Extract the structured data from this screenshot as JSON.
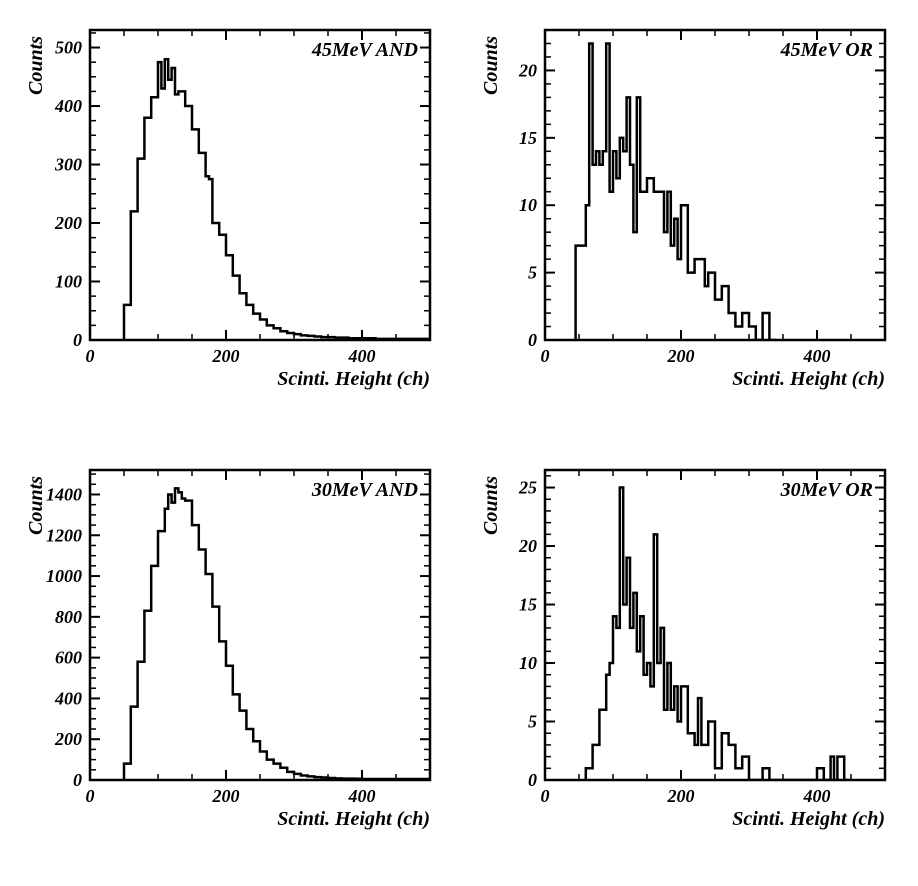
{
  "global": {
    "background_color": "#ffffff",
    "line_color": "#000000",
    "text_color": "#000000",
    "font_family": "Times New Roman",
    "font_style": "italic",
    "font_weight": "bold",
    "tick_fontsize": 18,
    "axis_label_fontsize": 20,
    "title_fontsize": 20,
    "line_width_histogram": 2.5,
    "line_width_frame": 2.5,
    "tick_length": 10,
    "minor_tick_length": 6,
    "xlabel": "Scinti. Height (ch)",
    "ylabel": "Counts"
  },
  "panels": [
    {
      "id": "p45and",
      "title": "45MeV AND",
      "type": "histogram",
      "xlim": [
        0,
        500
      ],
      "xtick_step": 200,
      "xminor_step": 50,
      "ylim": [
        0,
        530
      ],
      "ytick_step": 100,
      "yminor_step": 25,
      "bin_width": 10,
      "data": [
        [
          50,
          60
        ],
        [
          60,
          220
        ],
        [
          70,
          310
        ],
        [
          80,
          380
        ],
        [
          90,
          415
        ],
        [
          100,
          475
        ],
        [
          105,
          430
        ],
        [
          110,
          480
        ],
        [
          115,
          445
        ],
        [
          120,
          465
        ],
        [
          125,
          420
        ],
        [
          130,
          425
        ],
        [
          140,
          400
        ],
        [
          150,
          360
        ],
        [
          160,
          320
        ],
        [
          170,
          280
        ],
        [
          175,
          275
        ],
        [
          180,
          200
        ],
        [
          190,
          180
        ],
        [
          200,
          145
        ],
        [
          210,
          110
        ],
        [
          220,
          80
        ],
        [
          230,
          60
        ],
        [
          240,
          45
        ],
        [
          250,
          35
        ],
        [
          260,
          25
        ],
        [
          270,
          20
        ],
        [
          280,
          15
        ],
        [
          290,
          12
        ],
        [
          300,
          10
        ],
        [
          310,
          8
        ],
        [
          320,
          7
        ],
        [
          330,
          6
        ],
        [
          340,
          5
        ],
        [
          350,
          5
        ],
        [
          360,
          4
        ],
        [
          370,
          4
        ],
        [
          380,
          3
        ],
        [
          390,
          3
        ],
        [
          400,
          3
        ],
        [
          410,
          3
        ],
        [
          420,
          2
        ],
        [
          430,
          2
        ],
        [
          440,
          2
        ],
        [
          450,
          2
        ],
        [
          460,
          2
        ],
        [
          470,
          2
        ],
        [
          480,
          2
        ],
        [
          490,
          2
        ]
      ]
    },
    {
      "id": "p45or",
      "title": "45MeV OR",
      "type": "histogram",
      "xlim": [
        0,
        500
      ],
      "xtick_step": 200,
      "xminor_step": 50,
      "ylim": [
        0,
        23
      ],
      "ytick_step": 5,
      "yminor_step": 1,
      "bin_width": 10,
      "data": [
        [
          45,
          7
        ],
        [
          50,
          7
        ],
        [
          55,
          7
        ],
        [
          60,
          10
        ],
        [
          65,
          22
        ],
        [
          70,
          13
        ],
        [
          75,
          14
        ],
        [
          80,
          13
        ],
        [
          85,
          14
        ],
        [
          90,
          22
        ],
        [
          95,
          11
        ],
        [
          100,
          14
        ],
        [
          105,
          12
        ],
        [
          110,
          15
        ],
        [
          115,
          14
        ],
        [
          120,
          18
        ],
        [
          125,
          13
        ],
        [
          130,
          8
        ],
        [
          135,
          18
        ],
        [
          140,
          11
        ],
        [
          150,
          12
        ],
        [
          160,
          11
        ],
        [
          170,
          11
        ],
        [
          175,
          8
        ],
        [
          180,
          11
        ],
        [
          185,
          7
        ],
        [
          190,
          9
        ],
        [
          195,
          6
        ],
        [
          200,
          10
        ],
        [
          210,
          5
        ],
        [
          220,
          6
        ],
        [
          230,
          6
        ],
        [
          235,
          4
        ],
        [
          240,
          5
        ],
        [
          250,
          3
        ],
        [
          260,
          4
        ],
        [
          270,
          2
        ],
        [
          280,
          1
        ],
        [
          290,
          2
        ],
        [
          300,
          1
        ],
        [
          310,
          0
        ],
        [
          320,
          2
        ],
        [
          330,
          0
        ]
      ]
    },
    {
      "id": "p30and",
      "title": "30MeV AND",
      "type": "histogram",
      "xlim": [
        0,
        500
      ],
      "xtick_step": 200,
      "xminor_step": 50,
      "ylim": [
        0,
        1520
      ],
      "ytick_step": 200,
      "yminor_step": 50,
      "bin_width": 10,
      "data": [
        [
          50,
          80
        ],
        [
          60,
          360
        ],
        [
          70,
          580
        ],
        [
          80,
          830
        ],
        [
          90,
          1050
        ],
        [
          100,
          1220
        ],
        [
          110,
          1330
        ],
        [
          115,
          1400
        ],
        [
          120,
          1360
        ],
        [
          125,
          1430
        ],
        [
          130,
          1410
        ],
        [
          135,
          1380
        ],
        [
          140,
          1370
        ],
        [
          150,
          1250
        ],
        [
          160,
          1130
        ],
        [
          170,
          1010
        ],
        [
          180,
          850
        ],
        [
          190,
          680
        ],
        [
          200,
          560
        ],
        [
          210,
          420
        ],
        [
          220,
          340
        ],
        [
          230,
          250
        ],
        [
          240,
          190
        ],
        [
          250,
          140
        ],
        [
          260,
          100
        ],
        [
          270,
          80
        ],
        [
          280,
          60
        ],
        [
          290,
          40
        ],
        [
          300,
          30
        ],
        [
          310,
          22
        ],
        [
          320,
          18
        ],
        [
          330,
          14
        ],
        [
          340,
          12
        ],
        [
          350,
          10
        ],
        [
          360,
          8
        ],
        [
          370,
          7
        ],
        [
          380,
          7
        ],
        [
          390,
          6
        ],
        [
          400,
          5
        ],
        [
          410,
          5
        ],
        [
          420,
          5
        ],
        [
          430,
          5
        ],
        [
          440,
          5
        ],
        [
          450,
          5
        ],
        [
          460,
          5
        ],
        [
          470,
          5
        ],
        [
          480,
          5
        ],
        [
          490,
          5
        ]
      ]
    },
    {
      "id": "p30or",
      "title": "30MeV OR",
      "type": "histogram",
      "xlim": [
        0,
        500
      ],
      "xtick_step": 200,
      "xminor_step": 50,
      "ylim": [
        0,
        26.5
      ],
      "ytick_step": 5,
      "yminor_step": 1,
      "bin_width": 10,
      "data": [
        [
          60,
          1
        ],
        [
          70,
          3
        ],
        [
          80,
          6
        ],
        [
          90,
          9
        ],
        [
          95,
          10
        ],
        [
          100,
          14
        ],
        [
          105,
          13
        ],
        [
          110,
          25
        ],
        [
          115,
          15
        ],
        [
          120,
          19
        ],
        [
          125,
          13
        ],
        [
          130,
          16
        ],
        [
          135,
          11
        ],
        [
          140,
          14
        ],
        [
          145,
          9
        ],
        [
          150,
          10
        ],
        [
          155,
          8
        ],
        [
          160,
          21
        ],
        [
          165,
          10
        ],
        [
          170,
          13
        ],
        [
          175,
          6
        ],
        [
          180,
          10
        ],
        [
          185,
          6
        ],
        [
          190,
          8
        ],
        [
          195,
          5
        ],
        [
          200,
          8
        ],
        [
          210,
          4
        ],
        [
          220,
          3
        ],
        [
          225,
          7
        ],
        [
          230,
          3
        ],
        [
          240,
          5
        ],
        [
          250,
          1
        ],
        [
          260,
          4
        ],
        [
          270,
          3
        ],
        [
          280,
          1
        ],
        [
          290,
          2
        ],
        [
          300,
          0
        ],
        [
          310,
          0
        ],
        [
          320,
          1
        ],
        [
          330,
          0
        ],
        [
          400,
          1
        ],
        [
          410,
          0
        ],
        [
          420,
          2
        ],
        [
          425,
          0
        ],
        [
          430,
          2
        ],
        [
          440,
          0
        ]
      ]
    }
  ]
}
